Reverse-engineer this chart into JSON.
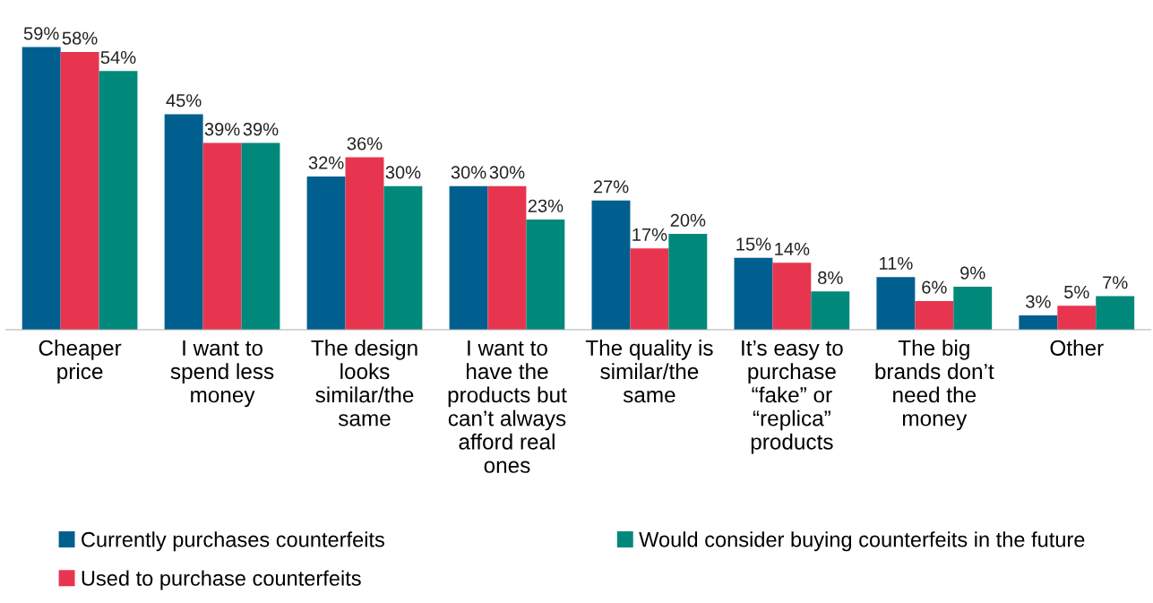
{
  "chart_data": {
    "type": "bar",
    "categories": [
      "Cheaper\nprice",
      "I want to\nspend less\nmoney",
      "The design\nlooks\nsimilar/the\nsame",
      "I want to\nhave the\nproducts but\ncan’t always\nafford real\nones",
      "The quality is\nsimilar/the\nsame",
      "It’s easy to\npurchase\n“fake” or\n“replica”\nproducts",
      "The big\nbrands don’t\nneed the\nmoney",
      "Other"
    ],
    "series": [
      {
        "name": "Currently purchases counterfeits",
        "color": "#005f8f",
        "values": [
          59,
          45,
          32,
          30,
          27,
          15,
          11,
          3
        ],
        "value_labels": [
          "59%",
          "45%",
          "32%",
          "30%",
          "27%",
          "15%",
          "11%",
          "3%"
        ]
      },
      {
        "name": "Used to purchase counterfeits",
        "color": "#e8354f",
        "values": [
          58,
          39,
          36,
          30,
          17,
          14,
          6,
          5
        ],
        "value_labels": [
          "58%",
          "39%",
          "36%",
          "30%",
          "17%",
          "14%",
          "6%",
          "5%"
        ]
      },
      {
        "name": "Would consider buying counterfeits in the future",
        "color": "#00897a",
        "values": [
          54,
          39,
          30,
          23,
          20,
          8,
          9,
          7
        ],
        "value_labels": [
          "54%",
          "39%",
          "30%",
          "23%",
          "20%",
          "8%",
          "9%",
          "7%"
        ]
      }
    ],
    "legend": "bottom",
    "grid": false
  }
}
